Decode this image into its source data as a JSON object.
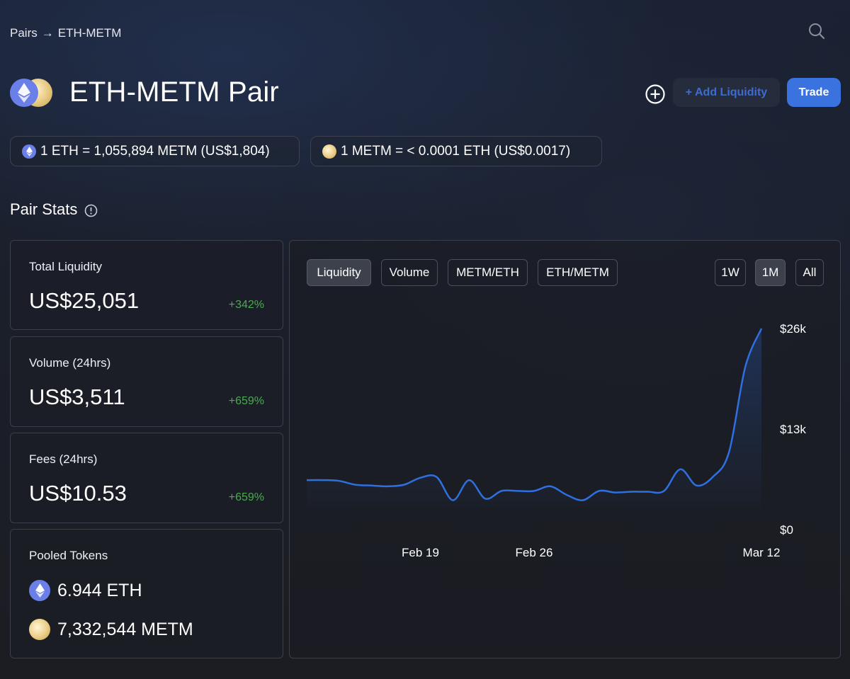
{
  "breadcrumb": {
    "root": "Pairs",
    "sep": "→",
    "current": "ETH-METM"
  },
  "header": {
    "title": "ETH-METM Pair",
    "add_liquidity": "+ Add Liquidity",
    "trade": "Trade"
  },
  "prices": {
    "eth_rate": "1 ETH = 1,055,894 METM (US$1,804)",
    "metm_rate": "1 METM = < 0.0001 ETH (US$0.0017)"
  },
  "stats": {
    "title": "Pair Stats",
    "liquidity": {
      "label": "Total Liquidity",
      "value": "US$25,051",
      "change": "+342%"
    },
    "volume": {
      "label": "Volume (24hrs)",
      "value": "US$3,511",
      "change": "+659%"
    },
    "fees": {
      "label": "Fees (24hrs)",
      "value": "US$10.53",
      "change": "+659%"
    },
    "pooled": {
      "label": "Pooled Tokens",
      "eth": "6.944 ETH",
      "metm": "7,332,544 METM"
    }
  },
  "chart_tabs": {
    "liquidity": "Liquidity",
    "volume": "Volume",
    "metm_eth": "METM/ETH",
    "eth_metm": "ETH/METM"
  },
  "range_tabs": {
    "w1": "1W",
    "m1": "1M",
    "all": "All",
    "active": "1M"
  },
  "colors": {
    "accent": "#3a73e0",
    "positive": "#4bab4f",
    "line": "#2f6fe0"
  },
  "chart_data": {
    "type": "area",
    "title": "",
    "xlabel": "",
    "ylabel": "",
    "y_ticks": [
      "$26k",
      "$13k",
      "$0"
    ],
    "x_ticks": [
      "Feb 19",
      "Feb 26",
      "Mar 12"
    ],
    "ylim": [
      0,
      26000
    ],
    "x": [
      "Feb 12",
      "Feb 13",
      "Feb 14",
      "Feb 15",
      "Feb 16",
      "Feb 17",
      "Feb 18",
      "Feb 19",
      "Feb 20",
      "Feb 21",
      "Feb 22",
      "Feb 23",
      "Feb 24",
      "Feb 25",
      "Feb 26",
      "Feb 27",
      "Feb 28",
      "Mar 1",
      "Mar 2",
      "Mar 3",
      "Mar 4",
      "Mar 5",
      "Mar 6",
      "Mar 7",
      "Mar 8",
      "Mar 9",
      "Mar 10",
      "Mar 11",
      "Mar 12"
    ],
    "series": [
      {
        "values": [
          6400,
          6400,
          6300,
          5800,
          5700,
          5600,
          5800,
          6700,
          6800,
          3800,
          6400,
          4000,
          5000,
          5000,
          5000,
          5600,
          4500,
          3800,
          5000,
          4800,
          4900,
          4900,
          5000,
          7800,
          5700,
          6800,
          10000,
          21000,
          26000
        ]
      }
    ]
  }
}
